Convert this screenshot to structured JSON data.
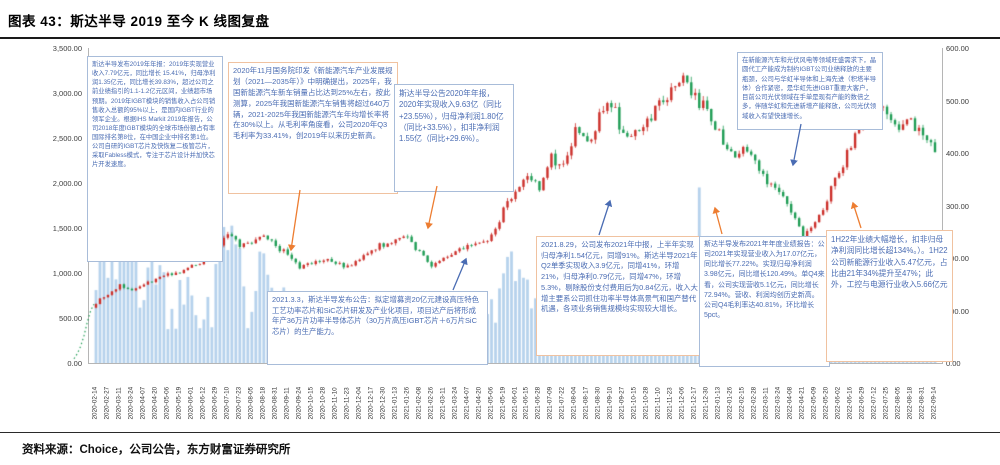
{
  "header": {
    "title": "图表 43：斯达半导 2019 至今 K 线图复盘"
  },
  "footer": {
    "source": "资料来源：Choice，公司公告，东方财富证券研究所"
  },
  "annotations": {
    "box_2019_annual": "斯达半导发布2019年年报：2019年实现营业收入7.79亿元，同比增长 15.41%，归母净利润1.35亿元，同比增长39.83%，超过公司之前业绩指引的1.1-1.2亿元区间，业绩超市场预期。2019年IGBT模块的销售收入占公司销售收入总额的95%以上，是国内IGBT行业的领军企业。根据IHS Markit 2019年报告，公司2018年度IGBT模块的全球市场份额占有率国际排名第8位，在中国企业中排名第1位。公司自研的IGBT芯片及快恢复二极管芯片，采取Fabless模式，专注于芯片设计并加快芯片开发速度。",
    "box_policy_2020": "2020年11月国务院印发《新能源汽车产业发展规划（2021—2035年）》中明确提出，2025年，我国新能源汽车新车销量占比达到25%左右，按此测算，2025年我国新能源汽车销售将超过640万辆，2021-2025年我国新能源汽车年均增长率将在30%以上。从毛利率角度看，公司2020年Q3毛利率为33.41%，创2019年以来历史新高。",
    "box_2020_annual": "斯达半导公告2020年年报，2020年实现收入9.63亿（同比+23.55%），归母净利润1.80亿（同比+33.5%），扣非净利润1.55亿（同比+29.6%）。",
    "box_wafer_capacity": "在新能源汽车和光伏风电等领域旺盛需求下，晶圆代工产能成为制约IGBT公司业绩释放的主要瓶颈，公司与华虹半导体和上海先进（积塔半导体）合作紧密，是华虹先进IGBT重要大客户，目前公司光伏领域在手单是现有产能的数倍之多，伴随华虹和先进新增产能释放，公司光伏领域收入有望快速增长。",
    "box_2021_placement": "2021.3.3，斯达半导发布公告：拟定增募资20亿元建设高压特色工艺功率芯片和SiC芯片研发及产业化项目，项目达产后将形成年产36万片功率半导体芯片（30万片高压IGBT芯片＋6万片SiC芯片）的生产能力。",
    "box_2021_interim": "2021.8.29，公司发布2021年中报，上半年实现归母净利1.54亿元，同增91%。斯达半导2021年Q2单季实现收入3.9亿元，同增41%，环增21%，归母净利0.79亿元，同增47%，环增5.3%，剔除股份支付费用后为0.84亿元，收入大增主要系公司抓住功率半导体高景气和国产替代机遇，各项业务销售规模均实现较大增长。",
    "box_2021_annual": "斯达半导发布2021年年度业绩报告：公司2021年实现营业收入为17.07亿元，同比增长77.22%。实现归母净利润3.98亿元，同比增长120.49%。单Q4来看，公司实现营收5.1亿元，同比增长72.94%。营收、利润均创历史新高。公司Q4毛利率达40.81%，环比增长5pct。",
    "box_1h22": "1H22年业绩大幅增长，扣非归母净利润同比增长超134%。）。1H22公司新能源行业收入5.47亿元，占比由21年34%提升至47%；此外，工控与电源行业收入5.66亿元"
  },
  "chart_data": {
    "type": "candlestick_with_volume",
    "title": "斯达半导 2019 至今 K 线图复盘",
    "legend_position": "none",
    "grid": false,
    "left_axis": {
      "min": 0,
      "max": 3500,
      "ticks": [
        "3,500.00",
        "3,000.00",
        "2,500.00",
        "2,000.00",
        "1,500.00",
        "1,000.00",
        "500.00",
        "0.00"
      ]
    },
    "right_axis": {
      "min": 0,
      "max": 600,
      "ticks": [
        "600.00",
        "500.00",
        "400.00",
        "300.00",
        "200.00",
        "100.00",
        "0.00"
      ]
    },
    "x_labels": [
      "2020-02-14",
      "2020-02-27",
      "2020-03-11",
      "2020-03-24",
      "2020-04-07",
      "2020-04-20",
      "2020-05-06",
      "2020-05-19",
      "2020-06-01",
      "2020-06-12",
      "2020-06-29",
      "2020-07-10",
      "2020-07-23",
      "2020-08-05",
      "2020-08-18",
      "2020-08-31",
      "2020-09-11",
      "2020-09-24",
      "2020-10-15",
      "2020-10-28",
      "2020-11-10",
      "2020-11-23",
      "2020-12-04",
      "2020-12-17",
      "2020-12-30",
      "2021-01-13",
      "2021-01-26",
      "2021-02-08",
      "2021-02-26",
      "2021-03-11",
      "2021-03-24",
      "2021-04-07",
      "2021-04-20",
      "2021-05-06",
      "2021-05-19",
      "2021-06-01",
      "2021-06-15",
      "2021-06-28",
      "2021-07-09",
      "2021-07-22",
      "2021-08-04",
      "2021-08-17",
      "2021-08-30",
      "2021-09-10",
      "2021-09-27",
      "2021-10-15",
      "2021-10-28",
      "2021-11-10",
      "2021-11-23",
      "2021-12-06",
      "2021-12-17",
      "2021-12-30",
      "2022-01-13",
      "2022-01-26",
      "2022-02-15",
      "2022-02-28",
      "2022-03-11",
      "2022-03-24",
      "2022-04-08",
      "2022-04-21",
      "2022-05-09",
      "2022-05-20",
      "2022-06-02",
      "2022-06-16",
      "2022-06-29",
      "2022-07-12",
      "2022-07-25",
      "2022-08-05",
      "2022-08-18",
      "2022-08-31",
      "2022-09-14"
    ],
    "close": [
      115,
      130,
      148,
      140,
      152,
      160,
      168,
      175,
      185,
      195,
      210,
      250,
      220,
      228,
      242,
      225,
      205,
      182,
      192,
      198,
      188,
      183,
      200,
      218,
      225,
      232,
      240,
      210,
      186,
      200,
      212,
      220,
      228,
      242,
      290,
      330,
      352,
      335,
      390,
      372,
      440,
      415,
      468,
      498,
      432,
      445,
      458,
      492,
      520,
      540,
      505,
      482,
      440,
      395,
      405,
      382,
      345,
      330,
      292,
      242,
      262,
      312,
      362,
      420,
      462,
      498,
      472,
      442,
      462,
      425,
      408
    ],
    "volume": [
      1450,
      1300,
      1500,
      1100,
      900,
      800,
      700,
      750,
      650,
      600,
      800,
      1250,
      900,
      700,
      950,
      750,
      600,
      500,
      450,
      500,
      420,
      400,
      480,
      600,
      550,
      580,
      650,
      500,
      420,
      400,
      380,
      400,
      420,
      500,
      800,
      900,
      850,
      700,
      950,
      750,
      1000,
      800,
      900,
      1050,
      800,
      650,
      700,
      850,
      950,
      1300,
      1500,
      1200,
      650,
      600,
      550,
      500,
      520,
      480,
      550,
      700,
      600,
      650,
      700,
      800,
      850,
      1200,
      850,
      700,
      750,
      600,
      550
    ],
    "intro_prices": [
      8,
      18,
      32,
      52,
      78,
      100,
      112
    ],
    "colors": {
      "up": "#cc2f2a",
      "down": "#1f9d55",
      "volume": "#9dc3e6",
      "blue_note": "#4a6cb3",
      "orange_note": "#ed7d31"
    }
  }
}
